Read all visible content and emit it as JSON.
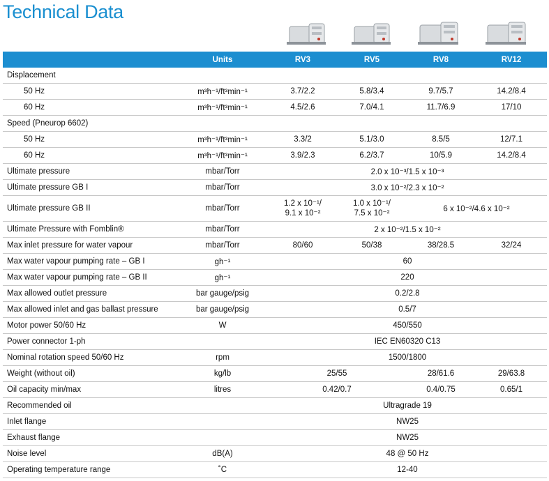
{
  "page": {
    "title": "Technical Data"
  },
  "header": {
    "units": "Units",
    "models": [
      "RV3",
      "RV5",
      "RV8",
      "RV12"
    ]
  },
  "images": {
    "pumps": [
      "vacuum-pump-image",
      "vacuum-pump-image",
      "vacuum-pump-image",
      "vacuum-pump-image"
    ]
  },
  "colors": {
    "accent": "#1a8fd0",
    "header_bg": "#1c8ed0",
    "row_border": "#c8c8c8"
  },
  "rows": {
    "displacement": {
      "label": "Displacement"
    },
    "disp_50": {
      "label": "50 Hz",
      "unit": "m³h⁻¹/ft³min⁻¹",
      "values": [
        "3.7/2.2",
        "5.8/3.4",
        "9.7/5.7",
        "14.2/8.4"
      ]
    },
    "disp_60": {
      "label": "60 Hz",
      "unit": "m³h⁻¹/ft³min⁻¹",
      "values": [
        "4.5/2.6",
        "7.0/4.1",
        "11.7/6.9",
        "17/10"
      ]
    },
    "speed": {
      "label": "Speed (Pneurop 6602)"
    },
    "speed_50": {
      "label": "50 Hz",
      "unit": "m³h⁻¹/ft³min⁻¹",
      "values": [
        "3.3/2",
        "5.1/3.0",
        "8.5/5",
        "12/7.1"
      ]
    },
    "speed_60": {
      "label": "60 Hz",
      "unit": "m³h⁻¹/ft³min⁻¹",
      "values": [
        "3.9/2.3",
        "6.2/3.7",
        "10/5.9",
        "14.2/8.4"
      ]
    },
    "ult_pressure": {
      "label": "Ultimate pressure",
      "unit": "mbar/Torr",
      "value": "2.0 x 10⁻³/1.5 x 10⁻³"
    },
    "ult_pressure_gb1": {
      "label": "Ultimate pressure GB I",
      "unit": "mbar/Torr",
      "value": "3.0 x 10⁻²/2.3 x 10⁻²"
    },
    "ult_pressure_gb2": {
      "label": "Ultimate pressure GB II",
      "unit": "mbar/Torr",
      "rv3_line1": "1.2 x 10⁻¹/",
      "rv3_line2": "9.1 x 10⁻²",
      "rv5_line1": "1.0 x 10⁻¹/",
      "rv5_line2": "7.5 x 10⁻²",
      "rv8_12": "6 x 10⁻²/4.6 x 10⁻²"
    },
    "ult_fomblin": {
      "label": "Ultimate Pressure with Fomblin®",
      "unit": "mbar/Torr",
      "value": "2 x 10⁻²/1.5 x 10⁻²"
    },
    "max_inlet_water": {
      "label": "Max inlet pressure for water vapour",
      "unit": "mbar/Torr",
      "values": [
        "80/60",
        "50/38",
        "38/28.5",
        "32/24"
      ]
    },
    "max_water_gb1": {
      "label": "Max water vapour pumping rate – GB I",
      "unit": "gh⁻¹",
      "value": "60"
    },
    "max_water_gb2": {
      "label": "Max water vapour pumping rate – GB II",
      "unit": "gh⁻¹",
      "value": "220"
    },
    "max_outlet": {
      "label": "Max allowed outlet pressure",
      "unit": "bar gauge/psig",
      "value": "0.2/2.8"
    },
    "max_inlet_gas": {
      "label": "Max allowed inlet and gas ballast pressure",
      "unit": "bar gauge/psig",
      "value": "0.5/7"
    },
    "motor_power": {
      "label": "Motor power 50/60 Hz",
      "unit": "W",
      "value": "450/550"
    },
    "power_connector": {
      "label": "Power connector 1-ph",
      "unit": "",
      "value": "IEC EN60320 C13"
    },
    "rotation_speed": {
      "label": "Nominal rotation speed 50/60 Hz",
      "unit": "rpm",
      "value": "1500/1800"
    },
    "weight": {
      "label": "Weight (without oil)",
      "unit": "kg/lb",
      "rv3_5": "25/55",
      "rv8": "28/61.6",
      "rv12": "29/63.8"
    },
    "oil_capacity": {
      "label": "Oil capacity min/max",
      "unit": "litres",
      "rv3_5": "0.42/0.7",
      "rv8": "0.4/0.75",
      "rv12": "0.65/1"
    },
    "recommended_oil": {
      "label": "Recommended oil",
      "unit": "",
      "value": "Ultragrade 19"
    },
    "inlet_flange": {
      "label": "Inlet flange",
      "unit": "",
      "value": "NW25"
    },
    "exhaust_flange": {
      "label": "Exhaust flange",
      "unit": "",
      "value": "NW25"
    },
    "noise": {
      "label": "Noise level",
      "unit": "dB(A)",
      "value": "48 @ 50 Hz"
    },
    "temp_range": {
      "label": "Operating temperature range",
      "unit": "˚C",
      "value": "12-40"
    }
  }
}
